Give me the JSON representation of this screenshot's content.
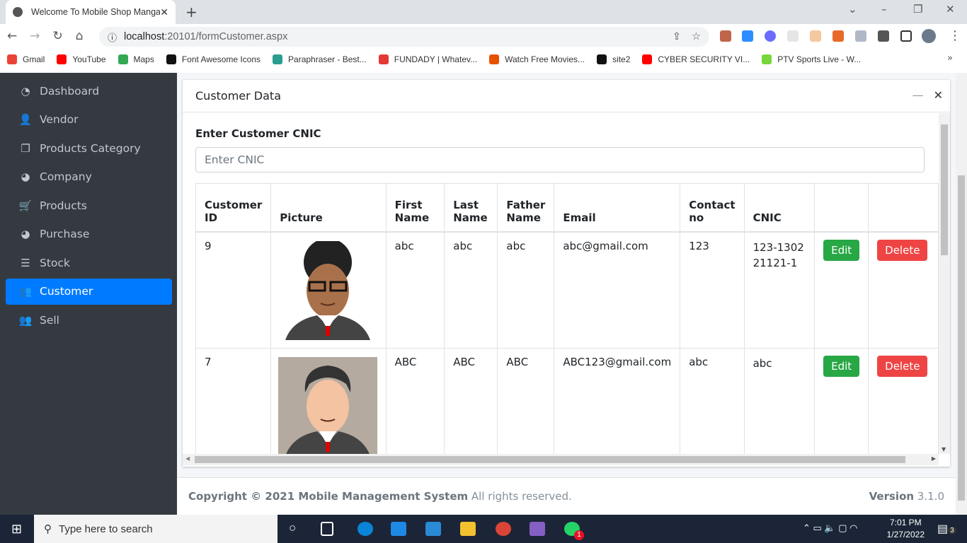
{
  "browser": {
    "tab_title": "Welcome To Mobile Shop Manga",
    "url_host": "localhost",
    "url_rest": ":20101/formCustomer.aspx",
    "bookmarks": [
      {
        "label": "Gmail",
        "color": "#ea4335"
      },
      {
        "label": "YouTube",
        "color": "#ff0000"
      },
      {
        "label": "Maps",
        "color": "#34a853"
      },
      {
        "label": "Font Awesome Icons",
        "color": "#111111"
      },
      {
        "label": "Paraphraser - Best...",
        "color": "#2a9d8f"
      },
      {
        "label": "FUNDADY | Whatev...",
        "color": "#e53935"
      },
      {
        "label": "Watch Free Movies...",
        "color": "#e65100"
      },
      {
        "label": "site2",
        "color": "#111111"
      },
      {
        "label": "CYBER SECURITY VI...",
        "color": "#ff0000"
      },
      {
        "label": "PTV Sports Live - W...",
        "color": "#76d63a"
      }
    ]
  },
  "sidebar": {
    "items": [
      {
        "label": "Dashboard",
        "icon": "tachometer-icon",
        "glyph": "◔"
      },
      {
        "label": "Vendor",
        "icon": "user-plus-icon",
        "glyph": "👤"
      },
      {
        "label": "Products Category",
        "icon": "copy-icon",
        "glyph": "❐"
      },
      {
        "label": "Company",
        "icon": "pie-chart-icon",
        "glyph": "◕"
      },
      {
        "label": "Products",
        "icon": "cart-icon",
        "glyph": "🛒"
      },
      {
        "label": "Purchase",
        "icon": "pie-chart-icon",
        "glyph": "◕"
      },
      {
        "label": "Stock",
        "icon": "bars-icon",
        "glyph": "☰"
      },
      {
        "label": "Customer",
        "icon": "users-icon",
        "glyph": "👥",
        "active": true
      },
      {
        "label": "Sell",
        "icon": "users-icon",
        "glyph": "👥"
      }
    ]
  },
  "card": {
    "title": "Customer Data",
    "cnic_label": "Enter Customer CNIC",
    "cnic_placeholder": "Enter CNIC"
  },
  "table": {
    "headers": [
      "Customer ID",
      "Picture",
      "First Name",
      "Last Name",
      "Father Name",
      "Email",
      "Contact no",
      "CNIC",
      "",
      ""
    ],
    "rows": [
      {
        "id": "9",
        "first": "abc",
        "last": "abc",
        "father": "abc",
        "email": "abc@gmail.com",
        "contact": "123",
        "cnic": "123-130221121-1",
        "avatar": "curly-hair-glasses"
      },
      {
        "id": "7",
        "first": "ABC",
        "last": "ABC",
        "father": "ABC",
        "email": "ABC123@gmail.com",
        "contact": "abc",
        "cnic": "abc",
        "avatar": "dark-hair"
      }
    ],
    "edit_label": "Edit",
    "delete_label": "Delete"
  },
  "footer": {
    "copyright": "Copyright © 2021 Mobile Management System",
    "rights": " All rights reserved.",
    "version_label": "Version",
    "version": " 3.1.0"
  },
  "taskbar": {
    "search_placeholder": "Type here to search",
    "time": "7:01 PM",
    "date": "1/27/2022",
    "notifications": "3",
    "whatsapp_badge": "1"
  }
}
